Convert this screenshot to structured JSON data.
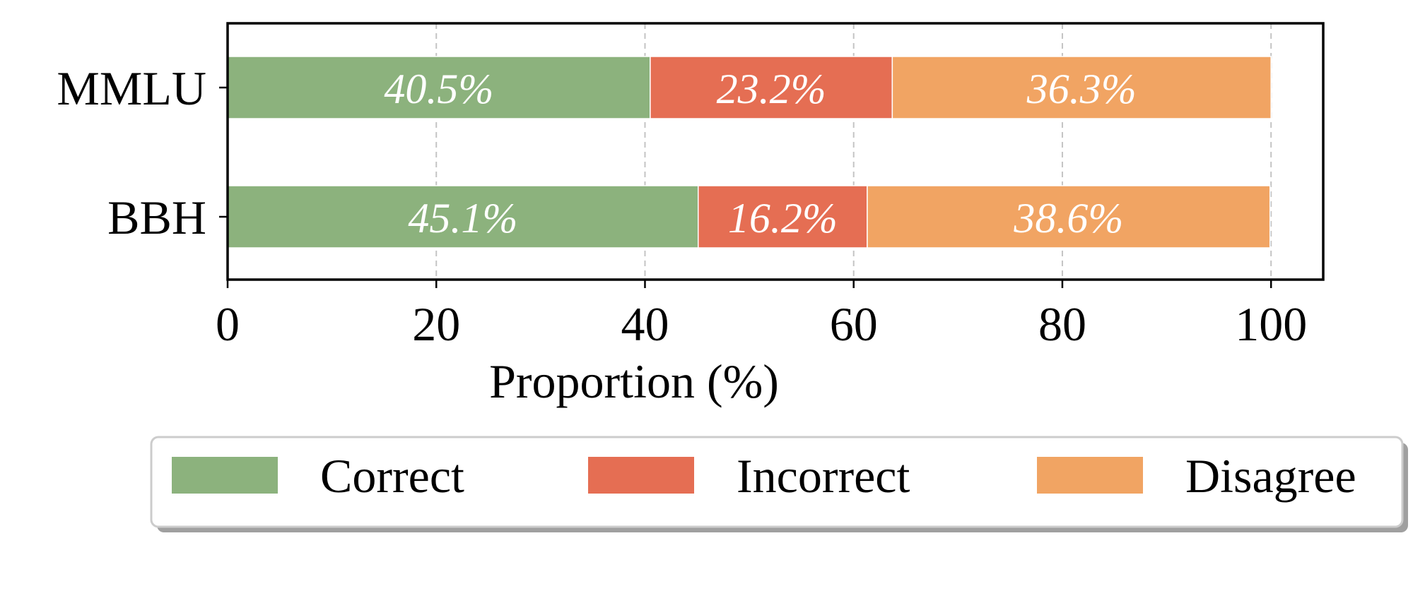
{
  "chart_data": {
    "type": "bar",
    "orientation": "horizontal",
    "stacked": true,
    "categories": [
      "MMLU",
      "BBH"
    ],
    "series": [
      {
        "name": "Correct",
        "values": [
          40.5,
          45.1
        ],
        "labels": [
          "40.5%",
          "45.1%"
        ],
        "color": "#8cb27d"
      },
      {
        "name": "Incorrect",
        "values": [
          23.2,
          16.2
        ],
        "labels": [
          "23.2%",
          "16.2%"
        ],
        "color": "#e56e53"
      },
      {
        "name": "Disagree",
        "values": [
          36.3,
          38.6
        ],
        "labels": [
          "36.3%",
          "38.6%"
        ],
        "color": "#f1a463"
      }
    ],
    "xlabel": "Proportion (%)",
    "ylabel": "",
    "xlim": [
      0,
      105
    ],
    "xticks": [
      0,
      20,
      40,
      60,
      80,
      100
    ],
    "xtick_labels": [
      "0",
      "20",
      "40",
      "60",
      "80",
      "100"
    ],
    "grid": "x-dashed",
    "legend_position": "bottom"
  }
}
